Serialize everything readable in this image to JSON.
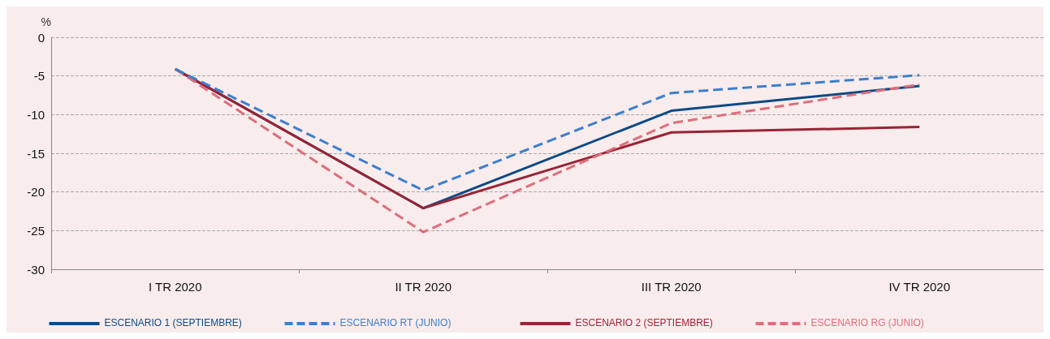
{
  "chart_data": {
    "type": "line",
    "ylabel": "%",
    "categories": [
      "I TR 2020",
      "II TR 2020",
      "III TR 2020",
      "IV TR 2020"
    ],
    "series": [
      {
        "name": "ESCENARIO 1 (SEPTIEMBRE)",
        "color": "#0d4a85",
        "line_style": "solid",
        "values": [
          -4.1,
          -22.1,
          -9.5,
          -6.3
        ]
      },
      {
        "name": "ESCENARIO RT (JUNIO)",
        "color": "#3d7fcc",
        "line_style": "dashed",
        "values": [
          -4.1,
          -19.8,
          -7.2,
          -4.9
        ]
      },
      {
        "name": "ESCENARIO 2 (SEPTIEMBRE)",
        "color": "#9b2335",
        "line_style": "solid",
        "values": [
          -4.1,
          -22.1,
          -12.3,
          -11.6
        ]
      },
      {
        "name": "ESCENARIO RG (JUNIO)",
        "color": "#dd6e7c",
        "line_style": "dashed",
        "values": [
          -4.1,
          -25.2,
          -11.1,
          -6.1
        ]
      }
    ],
    "ylim": [
      -30,
      0
    ],
    "yticks": [
      -30,
      -25,
      -20,
      -15,
      -10,
      -5,
      0
    ],
    "grid": "y",
    "legend": "bottom",
    "marker": "none"
  }
}
